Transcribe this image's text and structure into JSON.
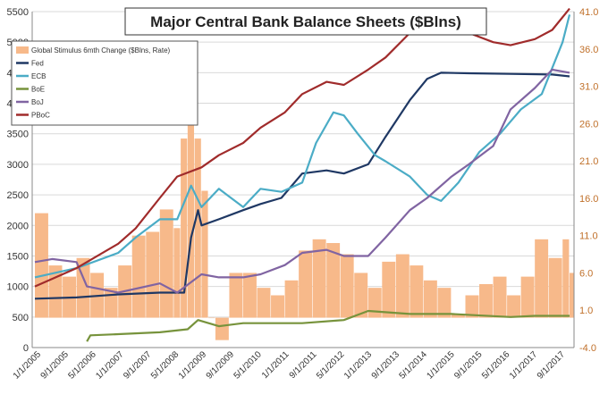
{
  "chart_data": {
    "type": "line",
    "title": "Major Central Bank Balance Sheets ($Blns)",
    "y_left": {
      "ylim": [
        0,
        5500
      ],
      "ticks": [
        0,
        500,
        1000,
        1500,
        2000,
        2500,
        3000,
        3500,
        4000,
        4500,
        5000,
        5500
      ]
    },
    "y_right": {
      "ylim": [
        -4.0,
        41.0
      ],
      "ticks": [
        "-4.0",
        "1.0",
        "6.0",
        "11.0",
        "16.0",
        "21.0",
        "26.0",
        "31.0",
        "36.0",
        "41.0"
      ]
    },
    "x_tick_labels": [
      "1/1/2005",
      "9/1/2005",
      "5/1/2006",
      "1/1/2007",
      "9/1/2007",
      "5/1/2008",
      "1/1/2009",
      "9/1/2009",
      "5/1/2010",
      "1/1/2011",
      "9/1/2011",
      "5/1/2012",
      "1/1/2013",
      "9/1/2013",
      "5/1/2014",
      "1/1/2015",
      "9/1/2015",
      "5/1/2016",
      "1/1/2017",
      "9/1/2017"
    ],
    "x_range": [
      "2005-01",
      "2017-11"
    ],
    "legend_position": "top-left",
    "grid": "horizontal",
    "series": [
      {
        "name": "Global Stimulus 6mth Change ($Blns, Rate)",
        "kind": "bar",
        "axis": "right",
        "color": "#f7b98a",
        "points": [
          [
            "2005-01",
            14.0
          ],
          [
            "2005-05",
            7.0
          ],
          [
            "2005-09",
            5.5
          ],
          [
            "2006-01",
            8.0
          ],
          [
            "2006-05",
            6.0
          ],
          [
            "2006-09",
            4.0
          ],
          [
            "2007-01",
            7.0
          ],
          [
            "2007-05",
            11.0
          ],
          [
            "2007-09",
            11.5
          ],
          [
            "2008-01",
            14.5
          ],
          [
            "2008-05",
            12.0
          ],
          [
            "2008-07",
            24.0
          ],
          [
            "2008-09",
            29.0
          ],
          [
            "2008-11",
            24.0
          ],
          [
            "2009-01",
            17.0
          ],
          [
            "2009-03",
            0.0
          ],
          [
            "2009-05",
            -3.0
          ],
          [
            "2009-09",
            6.0
          ],
          [
            "2010-01",
            6.0
          ],
          [
            "2010-05",
            4.0
          ],
          [
            "2010-09",
            3.0
          ],
          [
            "2011-01",
            5.0
          ],
          [
            "2011-05",
            9.0
          ],
          [
            "2011-09",
            10.5
          ],
          [
            "2012-01",
            10.0
          ],
          [
            "2012-05",
            8.5
          ],
          [
            "2012-09",
            6.0
          ],
          [
            "2013-01",
            4.0
          ],
          [
            "2013-05",
            7.5
          ],
          [
            "2013-09",
            8.5
          ],
          [
            "2014-01",
            7.0
          ],
          [
            "2014-05",
            5.0
          ],
          [
            "2014-09",
            4.0
          ],
          [
            "2015-01",
            0.5
          ],
          [
            "2015-05",
            3.0
          ],
          [
            "2015-09",
            4.5
          ],
          [
            "2016-01",
            5.5
          ],
          [
            "2016-05",
            3.0
          ],
          [
            "2016-09",
            5.5
          ],
          [
            "2017-01",
            10.5
          ],
          [
            "2017-05",
            8.0
          ],
          [
            "2017-09",
            10.5
          ],
          [
            "2017-11",
            6.0
          ]
        ]
      },
      {
        "name": "Fed",
        "kind": "line",
        "axis": "left",
        "color": "#1f3864",
        "points": [
          [
            "2005-01",
            800
          ],
          [
            "2006-01",
            820
          ],
          [
            "2007-01",
            870
          ],
          [
            "2008-01",
            900
          ],
          [
            "2008-08",
            900
          ],
          [
            "2008-10",
            1800
          ],
          [
            "2008-12",
            2250
          ],
          [
            "2009-01",
            2000
          ],
          [
            "2009-06",
            2100
          ],
          [
            "2010-01",
            2250
          ],
          [
            "2010-06",
            2350
          ],
          [
            "2010-12",
            2450
          ],
          [
            "2011-06",
            2850
          ],
          [
            "2012-01",
            2900
          ],
          [
            "2012-06",
            2850
          ],
          [
            "2013-01",
            3000
          ],
          [
            "2013-06",
            3450
          ],
          [
            "2014-01",
            4050
          ],
          [
            "2014-06",
            4400
          ],
          [
            "2014-10",
            4500
          ],
          [
            "2015-06",
            4490
          ],
          [
            "2016-06",
            4480
          ],
          [
            "2017-06",
            4470
          ],
          [
            "2017-11",
            4440
          ]
        ]
      },
      {
        "name": "ECB",
        "kind": "line",
        "axis": "left",
        "color": "#4bacc6",
        "points": [
          [
            "2005-01",
            1150
          ],
          [
            "2006-01",
            1300
          ],
          [
            "2007-01",
            1550
          ],
          [
            "2007-06",
            1800
          ],
          [
            "2008-01",
            2100
          ],
          [
            "2008-06",
            2100
          ],
          [
            "2008-10",
            2650
          ],
          [
            "2009-01",
            2300
          ],
          [
            "2009-06",
            2600
          ],
          [
            "2010-01",
            2300
          ],
          [
            "2010-06",
            2600
          ],
          [
            "2010-12",
            2550
          ],
          [
            "2011-06",
            2700
          ],
          [
            "2011-10",
            3350
          ],
          [
            "2012-03",
            3850
          ],
          [
            "2012-06",
            3800
          ],
          [
            "2012-10",
            3500
          ],
          [
            "2013-03",
            3150
          ],
          [
            "2013-06",
            3050
          ],
          [
            "2014-01",
            2800
          ],
          [
            "2014-06",
            2500
          ],
          [
            "2014-10",
            2400
          ],
          [
            "2015-03",
            2700
          ],
          [
            "2015-09",
            3200
          ],
          [
            "2016-03",
            3500
          ],
          [
            "2016-09",
            3900
          ],
          [
            "2017-03",
            4150
          ],
          [
            "2017-09",
            5000
          ],
          [
            "2017-11",
            5450
          ]
        ]
      },
      {
        "name": "BoE",
        "kind": "line",
        "axis": "left",
        "color": "#77933c",
        "points": [
          [
            "2006-04",
            100
          ],
          [
            "2006-05",
            200
          ],
          [
            "2007-01",
            220
          ],
          [
            "2008-01",
            250
          ],
          [
            "2008-09",
            300
          ],
          [
            "2008-12",
            450
          ],
          [
            "2009-06",
            350
          ],
          [
            "2010-01",
            400
          ],
          [
            "2011-06",
            400
          ],
          [
            "2012-06",
            450
          ],
          [
            "2013-01",
            600
          ],
          [
            "2014-01",
            550
          ],
          [
            "2015-01",
            550
          ],
          [
            "2016-06",
            500
          ],
          [
            "2017-01",
            520
          ],
          [
            "2017-11",
            520
          ]
        ]
      },
      {
        "name": "BoJ",
        "kind": "line",
        "axis": "left",
        "color": "#8064a2",
        "points": [
          [
            "2005-01",
            1400
          ],
          [
            "2005-06",
            1450
          ],
          [
            "2006-01",
            1400
          ],
          [
            "2006-04",
            1000
          ],
          [
            "2007-01",
            900
          ],
          [
            "2008-01",
            1050
          ],
          [
            "2008-06",
            900
          ],
          [
            "2009-01",
            1200
          ],
          [
            "2009-06",
            1150
          ],
          [
            "2010-01",
            1150
          ],
          [
            "2010-06",
            1200
          ],
          [
            "2011-01",
            1350
          ],
          [
            "2011-06",
            1550
          ],
          [
            "2012-01",
            1600
          ],
          [
            "2012-06",
            1500
          ],
          [
            "2013-01",
            1500
          ],
          [
            "2013-06",
            1800
          ],
          [
            "2014-01",
            2250
          ],
          [
            "2014-06",
            2450
          ],
          [
            "2015-01",
            2800
          ],
          [
            "2015-06",
            3000
          ],
          [
            "2016-01",
            3300
          ],
          [
            "2016-06",
            3900
          ],
          [
            "2017-01",
            4250
          ],
          [
            "2017-06",
            4550
          ],
          [
            "2017-11",
            4500
          ]
        ]
      },
      {
        "name": "PBoC",
        "kind": "line",
        "axis": "left",
        "color": "#a02b2b",
        "points": [
          [
            "2005-01",
            1000
          ],
          [
            "2006-01",
            1300
          ],
          [
            "2007-01",
            1700
          ],
          [
            "2007-06",
            1950
          ],
          [
            "2008-01",
            2450
          ],
          [
            "2008-06",
            2800
          ],
          [
            "2009-01",
            2950
          ],
          [
            "2009-06",
            3150
          ],
          [
            "2010-01",
            3350
          ],
          [
            "2010-06",
            3600
          ],
          [
            "2011-01",
            3850
          ],
          [
            "2011-06",
            4150
          ],
          [
            "2012-01",
            4350
          ],
          [
            "2012-06",
            4300
          ],
          [
            "2013-01",
            4550
          ],
          [
            "2013-06",
            4750
          ],
          [
            "2014-01",
            5150
          ],
          [
            "2014-06",
            5500
          ],
          [
            "2015-01",
            5450
          ],
          [
            "2015-06",
            5150
          ],
          [
            "2016-01",
            5000
          ],
          [
            "2016-06",
            4950
          ],
          [
            "2017-01",
            5050
          ],
          [
            "2017-06",
            5200
          ],
          [
            "2017-11",
            5550
          ]
        ]
      }
    ]
  }
}
